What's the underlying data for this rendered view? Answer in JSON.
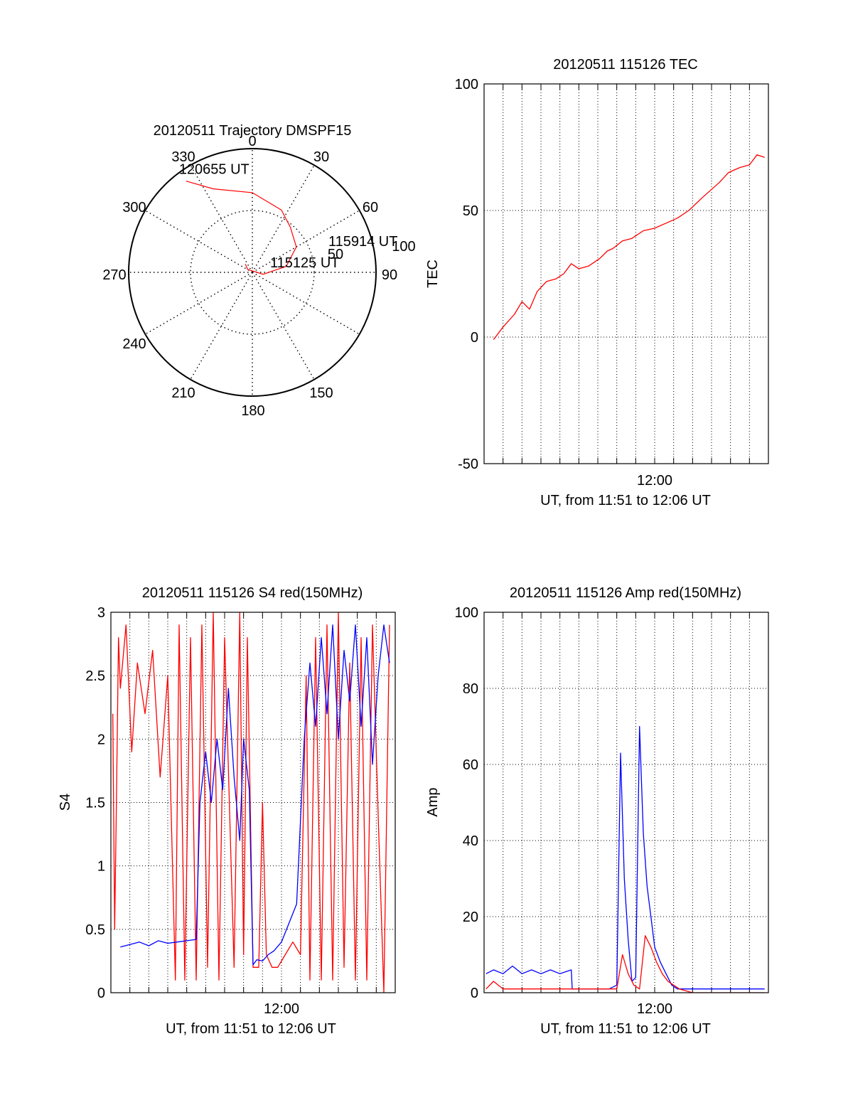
{
  "colors": {
    "red": "#ff0000",
    "blue": "#0000ff",
    "axis": "#000000"
  },
  "chart_data": [
    {
      "type": "polar-trajectory",
      "title": "20120511 Trajectory DMSPF15",
      "angle_labels": [
        "0",
        "30",
        "60",
        "90",
        "150",
        "180",
        "210",
        "240",
        "270",
        "300",
        "330"
      ],
      "radial_labels": [
        "50",
        "100"
      ],
      "series": [
        {
          "color": "red",
          "points": [
            [
              -36,
              82
            ],
            [
              -25,
              67
            ],
            [
              0,
              58
            ],
            [
              25,
              50
            ],
            [
              40,
              43
            ],
            [
              60,
              37
            ],
            [
              80,
              25
            ],
            [
              100,
              8
            ],
            [
              122,
              -4
            ],
            [
              140,
              -8
            ]
          ]
        }
      ],
      "annotations": [
        {
          "text": "120655 UT",
          "az": -36,
          "zen": 82
        },
        {
          "text": "115914 UT",
          "az": 60,
          "zen": 37
        },
        {
          "text": "115125 UT",
          "az": 140,
          "zen": -8
        }
      ]
    },
    {
      "type": "line",
      "title": "20120511 115126 TEC",
      "ylabel": "TEC",
      "xlabel": "UT, from 11:51 to 12:06 UT",
      "xtick_label": "12:00",
      "ylim": [
        -50,
        100
      ],
      "yticks": [
        "100",
        "50",
        "0",
        "-50"
      ],
      "series": [
        {
          "color": "red",
          "x": [
            0.5,
            1.0,
            1.6,
            2.0,
            2.4,
            2.8,
            3.3,
            3.8,
            4.2,
            4.6,
            5.0,
            5.5,
            6.1,
            6.5,
            6.8,
            7.3,
            7.8,
            8.4,
            9.0,
            9.6,
            10.2,
            10.8,
            11.5,
            12.4,
            12.9,
            13.5,
            14.0,
            14.4,
            14.8
          ],
          "y": [
            -1,
            4,
            9,
            14,
            11,
            18,
            22,
            23,
            25,
            29,
            27,
            28,
            31,
            34,
            35,
            38,
            39,
            42,
            43,
            45,
            47,
            50,
            55,
            61,
            65,
            67,
            68,
            72,
            71
          ]
        }
      ]
    },
    {
      "type": "line",
      "title": "20120511 115126 S4 red(150MHz)",
      "ylabel": "S4",
      "xlabel": "UT, from 11:51 to 12:06 UT",
      "xtick_label": "12:00",
      "ylim": [
        0,
        3
      ],
      "yticks": [
        "3",
        "2.5",
        "2",
        "1.5",
        "1",
        "0.5",
        "0"
      ],
      "series": [
        {
          "color": "red",
          "name": "",
          "x": [
            0.1,
            0.2,
            0.3,
            0.4,
            0.5,
            0.8,
            1.1,
            1.4,
            1.8,
            2.2,
            2.6,
            3.0,
            3.4,
            3.6,
            3.9,
            4.2,
            4.5,
            4.8,
            5.1,
            5.4,
            5.7,
            6.0,
            6.5,
            6.8,
            7.0,
            7.2,
            7.5,
            7.8,
            8.0,
            8.2,
            8.5,
            8.8,
            9.2,
            9.6,
            10.0,
            10.3,
            10.5,
            10.8,
            11.1,
            11.4,
            11.7,
            12.0,
            12.3,
            12.6,
            12.9,
            13.2,
            13.5,
            13.8,
            14.1,
            14.4,
            14.7
          ],
          "y": [
            2.2,
            0.5,
            1.6,
            2.8,
            2.4,
            2.9,
            1.9,
            2.6,
            2.2,
            2.7,
            1.7,
            2.5,
            0.1,
            2.9,
            0.1,
            2.8,
            0.1,
            2.9,
            0.2,
            3.0,
            0.1,
            2.8,
            0.2,
            3.0,
            0.3,
            2.8,
            0.2,
            0.2,
            1.5,
            0.3,
            0.2,
            0.2,
            0.3,
            0.4,
            0.3,
            2.5,
            0.1,
            2.8,
            0.1,
            2.9,
            0.1,
            3.0,
            0.2,
            2.6,
            0.1,
            2.8,
            0.1,
            2.9,
            1.4,
            0.0,
            2.9
          ]
        },
        {
          "color": "blue",
          "name": "",
          "x": [
            0.5,
            1.0,
            1.5,
            2.0,
            2.5,
            3.0,
            3.5,
            4.0,
            4.5,
            4.7,
            5.0,
            5.3,
            5.6,
            5.9,
            6.2,
            6.5,
            6.8,
            7.0,
            7.3,
            7.5,
            7.7,
            8.0,
            8.3,
            8.6,
            9.0,
            9.4,
            9.8,
            10.2,
            10.5,
            10.8,
            11.1,
            11.4,
            11.7,
            12.0,
            12.3,
            12.6,
            12.9,
            13.2,
            13.5,
            13.8,
            14.1,
            14.4,
            14.7
          ],
          "y": [
            0.36,
            0.38,
            0.4,
            0.37,
            0.41,
            0.39,
            0.4,
            0.41,
            0.42,
            1.5,
            1.9,
            1.5,
            2.0,
            1.6,
            2.4,
            1.7,
            1.2,
            2.0,
            1.6,
            0.22,
            0.26,
            0.25,
            0.3,
            0.33,
            0.4,
            0.55,
            0.7,
            2.0,
            2.6,
            2.1,
            2.8,
            2.2,
            2.9,
            2.0,
            2.7,
            2.3,
            2.9,
            2.1,
            2.8,
            1.8,
            2.5,
            2.9,
            2.6
          ]
        }
      ]
    },
    {
      "type": "line",
      "title": "20120511 115126 Amp red(150MHz)",
      "ylabel": "Amp",
      "xlabel": "UT, from 11:51 to 12:06 UT",
      "xtick_label": "12:00",
      "ylim": [
        0,
        100
      ],
      "yticks": [
        "100",
        "80",
        "60",
        "40",
        "20",
        "0"
      ],
      "series": [
        {
          "color": "blue",
          "x": [
            0.1,
            0.5,
            1.0,
            1.5,
            2.0,
            2.5,
            3.0,
            3.5,
            4.0,
            4.6,
            4.65,
            5.2,
            6.0,
            6.6,
            7.0,
            7.2,
            7.4,
            7.6,
            7.8,
            8.0,
            8.2,
            8.4,
            8.6,
            8.8,
            9.0,
            9.3,
            9.6,
            9.9,
            10.2,
            11.0,
            12.0,
            13.0,
            14.0,
            14.8
          ],
          "y": [
            5,
            6,
            5,
            7,
            5,
            6,
            5,
            6,
            5,
            6,
            1,
            1,
            1,
            1,
            2,
            63,
            30,
            14,
            3,
            4,
            70,
            42,
            28,
            20,
            12,
            8,
            5,
            2,
            1,
            1,
            1,
            1,
            1,
            1
          ]
        },
        {
          "color": "red",
          "x": [
            0.1,
            0.5,
            1.0,
            2.0,
            3.0,
            4.0,
            4.6,
            5.0,
            6.0,
            7.0,
            7.3,
            7.6,
            7.9,
            8.2,
            8.5,
            8.8,
            9.1,
            9.4,
            9.7,
            10.0,
            10.3,
            11.0,
            12.0,
            13.0,
            14.8
          ],
          "y": [
            1,
            3,
            1,
            1,
            1,
            1,
            1,
            1,
            1,
            1,
            10,
            5,
            2,
            1,
            15,
            12,
            8,
            5,
            3,
            2,
            1,
            0,
            0,
            0,
            0
          ]
        }
      ]
    }
  ]
}
